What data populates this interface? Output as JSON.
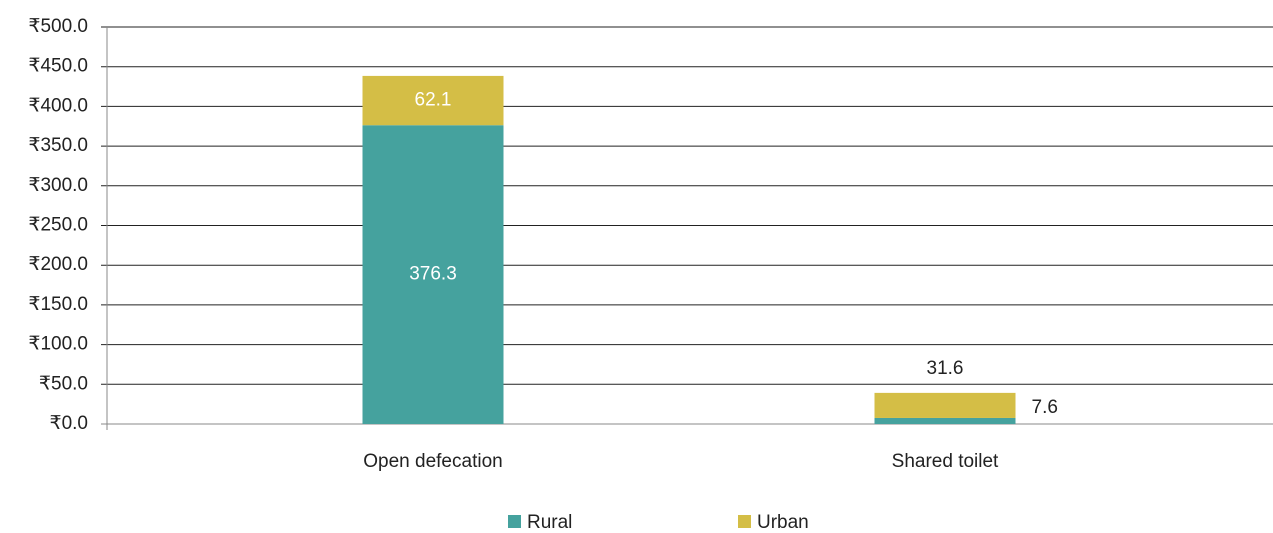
{
  "chart_data": {
    "type": "stacked_bar",
    "categories": [
      "Open defecation",
      "Shared toilet"
    ],
    "series": [
      {
        "name": "Rural",
        "color": "#45a29e",
        "values": [
          376.3,
          7.6
        ]
      },
      {
        "name": "Urban",
        "color": "#d4be46",
        "values": [
          62.1,
          31.6
        ]
      }
    ],
    "ylim": [
      0,
      500
    ],
    "yticks": [
      {
        "value": 0,
        "label": "₹0.0"
      },
      {
        "value": 50,
        "label": "₹50.0"
      },
      {
        "value": 100,
        "label": "₹100.0"
      },
      {
        "value": 150,
        "label": "₹150.0"
      },
      {
        "value": 200,
        "label": "₹200.0"
      },
      {
        "value": 250,
        "label": "₹250.0"
      },
      {
        "value": 300,
        "label": "₹300.0"
      },
      {
        "value": 350,
        "label": "₹350.0"
      },
      {
        "value": 400,
        "label": "₹400.0"
      },
      {
        "value": 450,
        "label": "₹450.0"
      },
      {
        "value": 500,
        "label": "₹500.0"
      }
    ],
    "grid": true,
    "legend": "bottom"
  }
}
